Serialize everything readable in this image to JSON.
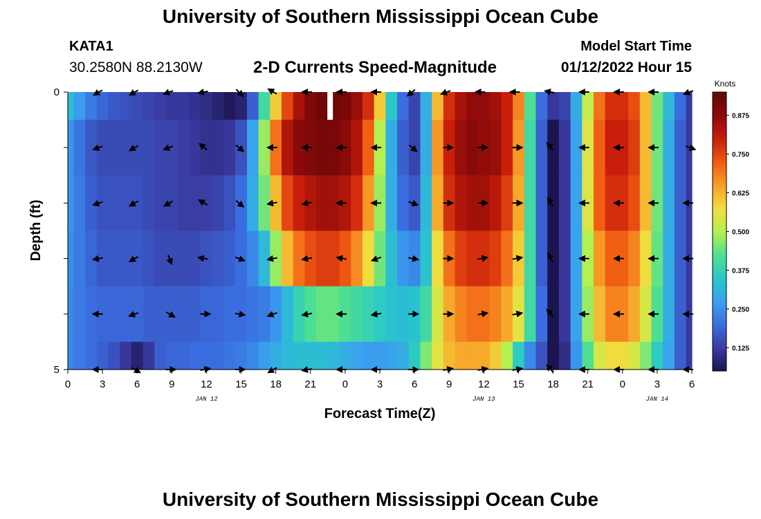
{
  "header": {
    "title": "University of Southern Mississippi Ocean Cube",
    "station_id": "KATA1",
    "station_coords": "30.2580N  88.2130W",
    "plot_title": "2-D Currents Speed-Magnitude",
    "model_start_label": "Model Start Time",
    "model_start_value": "01/12/2022 Hour 15"
  },
  "footer": {
    "title": "University of Southern Mississippi Ocean Cube"
  },
  "chart_data": {
    "type": "heatmap",
    "title": "2-D Currents Speed-Magnitude",
    "xlabel": "Forecast Time(Z)",
    "ylabel": "Depth (ft)",
    "x_hours": [
      0,
      48
    ],
    "x_start_hour_of_day": 0,
    "x_ticks": [
      {
        "hour": 0,
        "label": "0"
      },
      {
        "hour": 3,
        "label": "3"
      },
      {
        "hour": 6,
        "label": "6"
      },
      {
        "hour": 9,
        "label": "9"
      },
      {
        "hour": 12,
        "label": "12"
      },
      {
        "hour": 15,
        "label": "15"
      },
      {
        "hour": 18,
        "label": "18"
      },
      {
        "hour": 21,
        "label": "21"
      },
      {
        "hour": 24,
        "label": "0"
      },
      {
        "hour": 27,
        "label": "3"
      },
      {
        "hour": 30,
        "label": "6"
      },
      {
        "hour": 33,
        "label": "9"
      },
      {
        "hour": 36,
        "label": "12"
      },
      {
        "hour": 39,
        "label": "15"
      },
      {
        "hour": 42,
        "label": "18"
      },
      {
        "hour": 45,
        "label": "21"
      },
      {
        "hour": 48,
        "label": "0"
      },
      {
        "hour": 51,
        "label": "3"
      },
      {
        "hour": 54,
        "label": "6"
      }
    ],
    "x_max_hour": 54,
    "date_labels": [
      {
        "hour": 12,
        "label": "JAN 12"
      },
      {
        "hour": 36,
        "label": "JAN 13"
      },
      {
        "hour": 51,
        "label": "JAN 14"
      }
    ],
    "y_range": [
      0,
      5
    ],
    "y_ticks": [
      {
        "depth": 0,
        "label": "0"
      },
      {
        "depth": 1,
        "label": ""
      },
      {
        "depth": 2,
        "label": ""
      },
      {
        "depth": 3,
        "label": ""
      },
      {
        "depth": 4,
        "label": ""
      },
      {
        "depth": 5,
        "label": "5"
      }
    ],
    "depth_bands": [
      0,
      0.5,
      1.5,
      2.5,
      3.5,
      4.5,
      5
    ],
    "speed_columns_hours": [
      0,
      1,
      2,
      3,
      4,
      5,
      6,
      7,
      8,
      9,
      10,
      11,
      12,
      13,
      14,
      15,
      16,
      17,
      18,
      19,
      20,
      21,
      22,
      23,
      24,
      25,
      26,
      27,
      28,
      29,
      30,
      31,
      32,
      33,
      34,
      35,
      36,
      37,
      38,
      39,
      40,
      41,
      42,
      43,
      44,
      45,
      46,
      47,
      48,
      49,
      50,
      51,
      52,
      53,
      54
    ],
    "speed_knots": [
      [
        0.33,
        0.27,
        0.22,
        0.19,
        0.17,
        0.16,
        0.15,
        0.14,
        0.13,
        0.12,
        0.12,
        0.11,
        0.1,
        0.08,
        0.06,
        0.08,
        0.18,
        0.4,
        0.6,
        0.75,
        0.84,
        0.9,
        0.93,
        0.93,
        0.91,
        0.86,
        0.78,
        0.6,
        0.35,
        0.2,
        0.14,
        0.3,
        0.62,
        0.78,
        0.84,
        0.87,
        0.87,
        0.85,
        0.8,
        0.68,
        0.42,
        0.2,
        0.12,
        0.14,
        0.3,
        0.52,
        0.7,
        0.78,
        0.78,
        0.74,
        0.62,
        0.45,
        0.32,
        0.2,
        0.12
      ],
      [
        0.26,
        0.21,
        0.17,
        0.15,
        0.15,
        0.15,
        0.15,
        0.15,
        0.14,
        0.14,
        0.13,
        0.12,
        0.11,
        0.11,
        0.12,
        0.16,
        0.28,
        0.48,
        0.7,
        0.83,
        0.88,
        0.9,
        0.91,
        0.91,
        0.88,
        0.83,
        0.72,
        0.5,
        0.3,
        0.18,
        0.14,
        0.3,
        0.66,
        0.8,
        0.86,
        0.88,
        0.87,
        0.86,
        0.8,
        0.66,
        0.4,
        0.18,
        0.05,
        0.12,
        0.28,
        0.55,
        0.72,
        0.8,
        0.8,
        0.76,
        0.62,
        0.45,
        0.3,
        0.18,
        0.12
      ],
      [
        0.26,
        0.22,
        0.18,
        0.16,
        0.16,
        0.16,
        0.16,
        0.15,
        0.14,
        0.14,
        0.13,
        0.13,
        0.13,
        0.14,
        0.16,
        0.2,
        0.3,
        0.45,
        0.62,
        0.75,
        0.8,
        0.83,
        0.85,
        0.85,
        0.83,
        0.78,
        0.66,
        0.48,
        0.3,
        0.2,
        0.17,
        0.32,
        0.64,
        0.78,
        0.83,
        0.85,
        0.85,
        0.82,
        0.76,
        0.64,
        0.4,
        0.18,
        0.05,
        0.12,
        0.28,
        0.55,
        0.72,
        0.78,
        0.78,
        0.74,
        0.62,
        0.45,
        0.3,
        0.18,
        0.12
      ],
      [
        0.25,
        0.22,
        0.19,
        0.17,
        0.17,
        0.17,
        0.17,
        0.16,
        0.15,
        0.15,
        0.15,
        0.15,
        0.16,
        0.17,
        0.18,
        0.2,
        0.24,
        0.32,
        0.48,
        0.62,
        0.7,
        0.74,
        0.76,
        0.76,
        0.73,
        0.67,
        0.58,
        0.45,
        0.33,
        0.26,
        0.24,
        0.34,
        0.58,
        0.7,
        0.76,
        0.78,
        0.78,
        0.76,
        0.7,
        0.6,
        0.4,
        0.18,
        0.05,
        0.12,
        0.28,
        0.5,
        0.66,
        0.72,
        0.72,
        0.68,
        0.58,
        0.44,
        0.3,
        0.18,
        0.12
      ],
      [
        0.24,
        0.22,
        0.2,
        0.19,
        0.19,
        0.19,
        0.19,
        0.18,
        0.18,
        0.18,
        0.18,
        0.18,
        0.19,
        0.19,
        0.2,
        0.2,
        0.21,
        0.22,
        0.26,
        0.32,
        0.38,
        0.42,
        0.44,
        0.44,
        0.42,
        0.4,
        0.38,
        0.36,
        0.34,
        0.33,
        0.34,
        0.4,
        0.54,
        0.64,
        0.68,
        0.7,
        0.7,
        0.68,
        0.64,
        0.56,
        0.4,
        0.2,
        0.05,
        0.12,
        0.28,
        0.48,
        0.62,
        0.68,
        0.68,
        0.64,
        0.54,
        0.42,
        0.3,
        0.18,
        0.12
      ],
      [
        0.24,
        0.22,
        0.2,
        0.18,
        0.16,
        0.12,
        0.08,
        0.12,
        0.18,
        0.19,
        0.19,
        0.2,
        0.2,
        0.2,
        0.21,
        0.22,
        0.24,
        0.27,
        0.3,
        0.32,
        0.33,
        0.33,
        0.33,
        0.32,
        0.3,
        0.28,
        0.27,
        0.27,
        0.28,
        0.3,
        0.36,
        0.46,
        0.56,
        0.62,
        0.64,
        0.64,
        0.64,
        0.6,
        0.5,
        0.36,
        0.24,
        0.16,
        0.02,
        0.1,
        0.26,
        0.42,
        0.54,
        0.58,
        0.58,
        0.54,
        0.46,
        0.36,
        0.28,
        0.18,
        0.12
      ]
    ],
    "gap_marker": {
      "hour": 22.7,
      "depth_range": [
        0,
        0.5
      ]
    },
    "arrow_hours": [
      2.7,
      5.8,
      8.8,
      11.8,
      14.8,
      17.8,
      20.8,
      23.8,
      26.8,
      29.8,
      32.8,
      35.8,
      38.8,
      41.8,
      44.8,
      47.8,
      50.8,
      53.8
    ],
    "arrow_depths": [
      0,
      1,
      2,
      3,
      4,
      5
    ],
    "current_direction_deg": [
      [
        240,
        240,
        250,
        260,
        135,
        300,
        270,
        270,
        270,
        230,
        250,
        270,
        270,
        280,
        270,
        270,
        270,
        250
      ],
      [
        250,
        240,
        250,
        310,
        130,
        270,
        270,
        270,
        270,
        130,
        90,
        90,
        90,
        320,
        270,
        270,
        270,
        110
      ],
      [
        250,
        240,
        240,
        300,
        130,
        260,
        260,
        270,
        270,
        110,
        90,
        90,
        90,
        330,
        270,
        270,
        270,
        270
      ],
      [
        260,
        240,
        160,
        280,
        110,
        260,
        260,
        280,
        250,
        100,
        90,
        80,
        80,
        330,
        270,
        270,
        270,
        270
      ],
      [
        270,
        250,
        120,
        90,
        100,
        250,
        260,
        270,
        260,
        90,
        90,
        80,
        80,
        320,
        270,
        270,
        270,
        270
      ],
      [
        270,
        120,
        90,
        80,
        90,
        240,
        260,
        270,
        270,
        90,
        80,
        80,
        80,
        320,
        270,
        270,
        270,
        270
      ]
    ],
    "colorbar": {
      "unit": "Knots",
      "range": [
        0.05,
        0.95
      ],
      "ticks": [
        {
          "value": 0.125,
          "label": "0.125"
        },
        {
          "value": 0.25,
          "label": "0.250"
        },
        {
          "value": 0.375,
          "label": "0.375"
        },
        {
          "value": 0.5,
          "label": "0.500"
        },
        {
          "value": 0.625,
          "label": "0.625"
        },
        {
          "value": 0.75,
          "label": "0.750"
        },
        {
          "value": 0.875,
          "label": "0.875"
        }
      ]
    },
    "colormap": [
      "#1c1450",
      "#3a3aa0",
      "#3a6ee0",
      "#3aa0f0",
      "#28c8c8",
      "#50e090",
      "#b4f050",
      "#f0e040",
      "#f8a028",
      "#f05a14",
      "#c81e0a",
      "#8c0a0a",
      "#640606"
    ]
  }
}
